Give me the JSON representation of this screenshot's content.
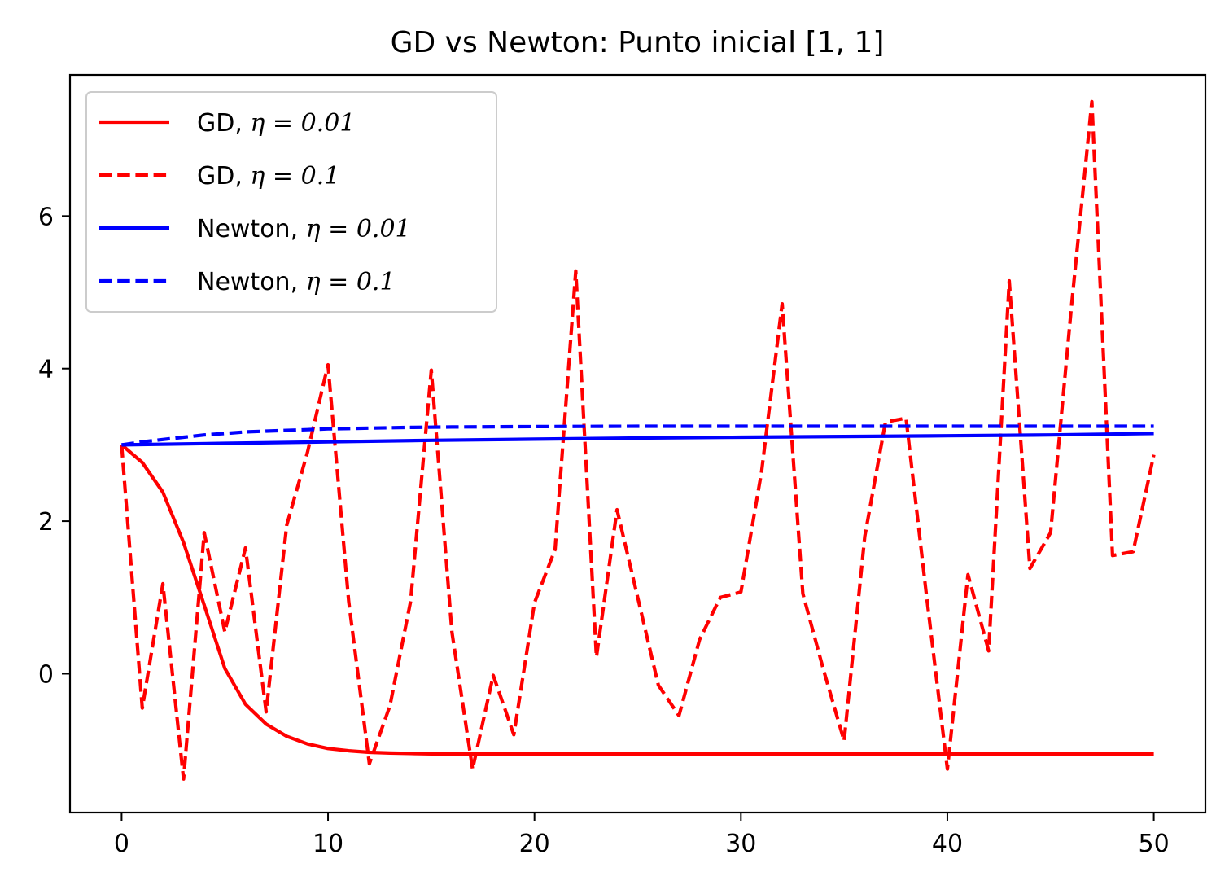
{
  "chart_data": {
    "type": "line",
    "title": "GD vs Newton: Punto inicial [1, 1]",
    "xlabel": "",
    "ylabel": "",
    "xlim": [
      -2.5,
      52.5
    ],
    "ylim": [
      -1.82,
      7.85
    ],
    "xticks": [
      0,
      10,
      20,
      30,
      40,
      50
    ],
    "yticks": [
      0,
      2,
      4,
      6
    ],
    "grid": false,
    "legend_position": "top-left",
    "series": [
      {
        "name_prefix": "GD, ",
        "name_math": "η = 0.01",
        "color": "#ff0000",
        "style": "solid",
        "x": [
          0,
          1,
          2,
          3,
          4,
          5,
          6,
          7,
          8,
          9,
          10,
          11,
          12,
          13,
          14,
          15,
          16,
          17,
          18,
          19,
          20,
          21,
          22,
          23,
          24,
          25,
          26,
          27,
          28,
          29,
          30,
          31,
          32,
          33,
          34,
          35,
          36,
          37,
          38,
          39,
          40,
          41,
          42,
          43,
          44,
          45,
          46,
          47,
          48,
          49,
          50
        ],
        "y": [
          3.0,
          2.77,
          2.38,
          1.72,
          0.9,
          0.07,
          -0.4,
          -0.66,
          -0.82,
          -0.92,
          -0.98,
          -1.01,
          -1.03,
          -1.04,
          -1.045,
          -1.05,
          -1.05,
          -1.05,
          -1.05,
          -1.05,
          -1.05,
          -1.05,
          -1.05,
          -1.05,
          -1.05,
          -1.05,
          -1.05,
          -1.05,
          -1.05,
          -1.05,
          -1.05,
          -1.05,
          -1.05,
          -1.05,
          -1.05,
          -1.05,
          -1.05,
          -1.05,
          -1.05,
          -1.05,
          -1.05,
          -1.05,
          -1.05,
          -1.05,
          -1.05,
          -1.05,
          -1.05,
          -1.05,
          -1.05,
          -1.05,
          -1.05
        ]
      },
      {
        "name_prefix": "GD, ",
        "name_math": "η = 0.1",
        "color": "#ff0000",
        "style": "dashed",
        "x": [
          0,
          1,
          2,
          3,
          4,
          5,
          6,
          7,
          8,
          9,
          10,
          11,
          12,
          13,
          14,
          15,
          16,
          17,
          18,
          19,
          20,
          21,
          22,
          23,
          24,
          25,
          26,
          27,
          28,
          29,
          30,
          31,
          32,
          33,
          34,
          35,
          36,
          37,
          38,
          39,
          40,
          41,
          42,
          43,
          44,
          45,
          46,
          47,
          48,
          49,
          50
        ],
        "y": [
          3.0,
          -0.45,
          1.18,
          -1.38,
          1.85,
          0.55,
          1.65,
          -0.5,
          1.95,
          2.9,
          4.05,
          0.95,
          -1.18,
          -0.42,
          0.95,
          3.98,
          0.55,
          -1.25,
          -0.02,
          -0.8,
          0.93,
          1.63,
          5.28,
          0.22,
          2.15,
          1.0,
          -0.15,
          -0.55,
          0.45,
          1.0,
          1.07,
          2.65,
          4.85,
          1.05,
          0.05,
          -0.88,
          1.8,
          3.3,
          3.35,
          1.0,
          -1.25,
          1.3,
          0.3,
          5.15,
          1.38,
          1.85,
          4.78,
          7.5,
          1.55,
          1.6,
          2.87
        ]
      },
      {
        "name_prefix": "Newton, ",
        "name_math": "η = 0.01",
        "color": "#0000ff",
        "style": "solid",
        "x": [
          0,
          5,
          10,
          15,
          20,
          25,
          30,
          35,
          40,
          45,
          50
        ],
        "y": [
          3.0,
          3.02,
          3.04,
          3.06,
          3.075,
          3.09,
          3.1,
          3.11,
          3.12,
          3.13,
          3.15
        ]
      },
      {
        "name_prefix": "Newton, ",
        "name_math": "η = 0.1",
        "color": "#0000ff",
        "style": "dashed",
        "x": [
          0,
          1,
          2,
          3,
          4,
          5,
          6,
          7,
          8,
          9,
          10,
          12,
          14,
          16,
          20,
          25,
          30,
          35,
          40,
          45,
          50
        ],
        "y": [
          3.0,
          3.04,
          3.07,
          3.1,
          3.13,
          3.15,
          3.17,
          3.18,
          3.19,
          3.2,
          3.21,
          3.22,
          3.23,
          3.235,
          3.24,
          3.245,
          3.245,
          3.245,
          3.245,
          3.245,
          3.245
        ]
      }
    ]
  }
}
